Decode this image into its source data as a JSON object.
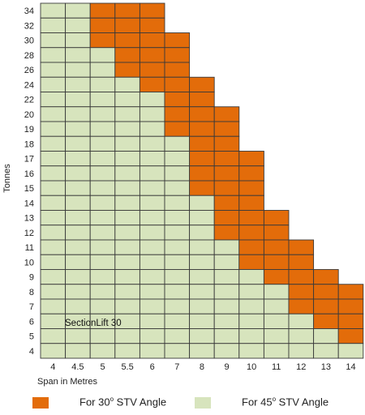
{
  "chart_data": {
    "type": "heatmap",
    "ylabel": "Tonnes",
    "xlabel": "Span in Metres",
    "x": [
      "4",
      "4.5",
      "5",
      "5.5",
      "6",
      "7",
      "8",
      "9",
      "10",
      "11",
      "12",
      "13",
      "14"
    ],
    "y": [
      "34",
      "32",
      "30",
      "28",
      "26",
      "24",
      "22",
      "20",
      "19",
      "18",
      "17",
      "16",
      "15",
      "14",
      "13",
      "12",
      "11",
      "10",
      "9",
      "8",
      "7",
      "6",
      "5",
      "4"
    ],
    "annotation": "SectionLift 30",
    "legend": [
      {
        "key": "30",
        "label": "For 30",
        "superscript": "o",
        "suffix": " STV Angle",
        "color": "#E36C0A"
      },
      {
        "key": "45",
        "label": "For 45",
        "superscript": "o",
        "suffix": " STV Angle",
        "color": "#D7E4BD"
      }
    ],
    "cells_by_column": [
      {
        "span": "4",
        "green_to": 34,
        "orange_to": null
      },
      {
        "span": "4.5",
        "green_to": 34,
        "orange_to": null
      },
      {
        "span": "5",
        "green_to": 28,
        "orange_to": 34
      },
      {
        "span": "5.5",
        "green_to": 24,
        "orange_to": 34
      },
      {
        "span": "6",
        "green_to": 22,
        "orange_to": 34
      },
      {
        "span": "7",
        "green_to": 18,
        "orange_to": 30
      },
      {
        "span": "8",
        "green_to": 14,
        "orange_to": 24
      },
      {
        "span": "9",
        "green_to": 11,
        "orange_to": 20
      },
      {
        "span": "10",
        "green_to": 9,
        "orange_to": 17
      },
      {
        "span": "11",
        "green_to": 8,
        "orange_to": 13
      },
      {
        "span": "12",
        "green_to": 6,
        "orange_to": 11
      },
      {
        "span": "13",
        "green_to": 5,
        "orange_to": 9
      },
      {
        "span": "14",
        "green_to": 4,
        "orange_to": 8
      }
    ],
    "colors": {
      "orange": "#E36C0A",
      "green": "#D7E4BD",
      "grid": "#3A3A3A",
      "empty": "#FFFFFF"
    }
  }
}
